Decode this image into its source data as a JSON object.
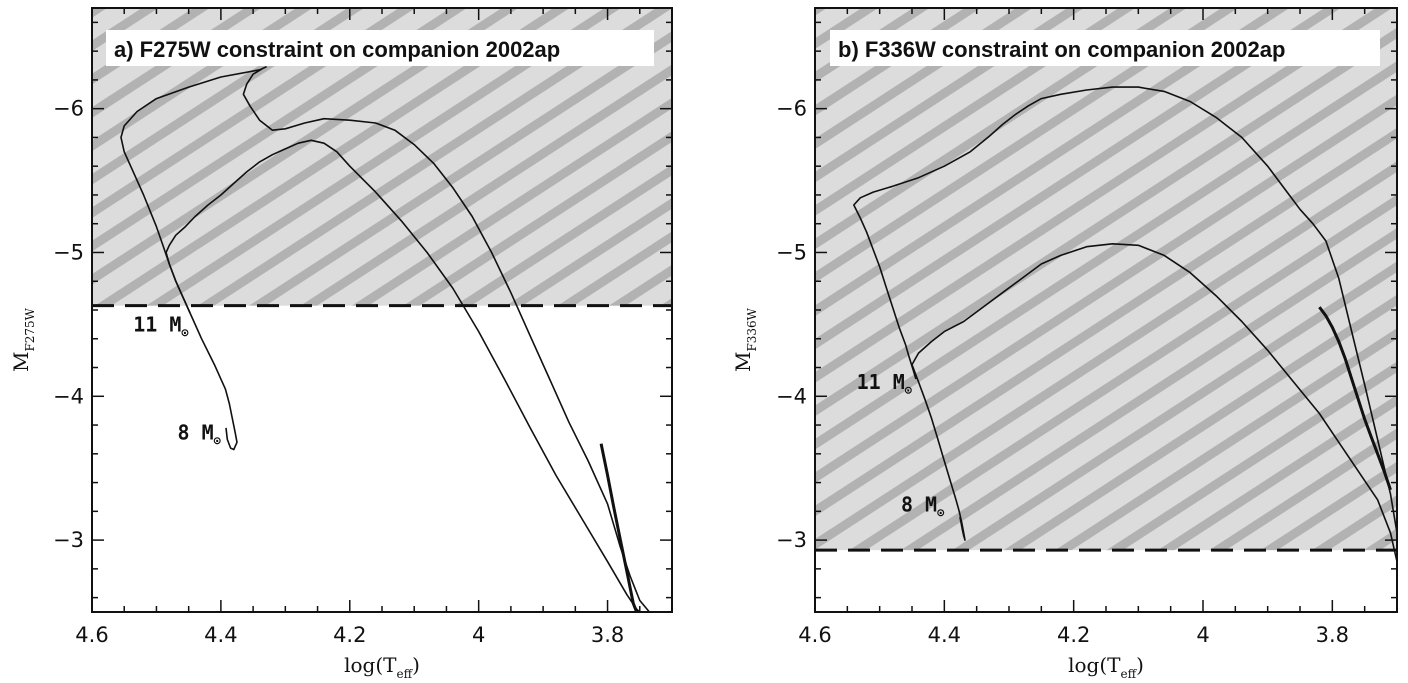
{
  "chart_data": [
    {
      "type": "line",
      "title": "a) F275W constraint on companion 2002ap",
      "xlabel_main": "log(T",
      "xlabel_sub": "eff",
      "xlabel_close": ")",
      "ylabel_main": "M",
      "ylabel_sub": "F275W",
      "xlim": [
        4.6,
        3.7
      ],
      "ylim": [
        -2.5,
        -6.7
      ],
      "xticks": [
        4.6,
        4.4,
        4.2,
        4.0,
        3.8
      ],
      "xtick_labels": [
        "4.6",
        "4.4",
        "4.2",
        "4",
        "3.8"
      ],
      "yticks": [
        -3,
        -4,
        -5,
        -6
      ],
      "ytick_labels": [
        "−3",
        "−4",
        "−5",
        "−6"
      ],
      "limit": -4.63,
      "shading": "hatched region brighter than limit",
      "track_labels": [
        {
          "text": "11 M",
          "sub": "⊙",
          "x": 4.45,
          "y": -4.45
        },
        {
          "text": "8 M",
          "sub": "⊙",
          "x": 4.4,
          "y": -3.7
        }
      ],
      "series": [
        {
          "name": "11 M⊙",
          "x": [
            4.448,
            4.452,
            4.46,
            4.47,
            4.48,
            4.49,
            4.5,
            4.52,
            4.54,
            4.55,
            4.555,
            4.55,
            4.53,
            4.5,
            4.45,
            4.4,
            4.34,
            4.33,
            4.335,
            4.35,
            4.36,
            4.365,
            4.355,
            4.34,
            4.32,
            4.3,
            4.27,
            4.24,
            4.2,
            4.16,
            4.13,
            4.1,
            4.07,
            4.04,
            4.01,
            3.98,
            3.95,
            3.92,
            3.89,
            3.86,
            3.83,
            3.8,
            3.78,
            3.765,
            3.75,
            3.735
          ],
          "y": [
            -4.58,
            -4.62,
            -4.7,
            -4.8,
            -4.92,
            -5.05,
            -5.18,
            -5.4,
            -5.6,
            -5.7,
            -5.8,
            -5.88,
            -5.98,
            -6.07,
            -6.15,
            -6.22,
            -6.27,
            -6.29,
            -6.28,
            -6.24,
            -6.17,
            -6.1,
            -6.02,
            -5.92,
            -5.85,
            -5.86,
            -5.9,
            -5.93,
            -5.92,
            -5.9,
            -5.85,
            -5.75,
            -5.62,
            -5.45,
            -5.25,
            -5.0,
            -4.72,
            -4.42,
            -4.12,
            -3.82,
            -3.55,
            -3.25,
            -2.95,
            -2.75,
            -2.58,
            -2.5
          ]
        },
        {
          "name": "8 M⊙",
          "x": [
            4.392,
            4.39,
            4.385,
            4.38,
            4.375,
            4.378,
            4.382,
            4.387,
            4.393,
            4.41,
            4.43,
            4.45,
            4.47,
            4.48,
            4.485,
            4.48,
            4.47,
            4.455,
            4.44,
            4.42,
            4.4,
            4.38,
            4.36,
            4.34,
            4.32,
            4.3,
            4.28,
            4.26,
            4.24,
            4.22,
            4.2,
            4.16,
            4.12,
            4.08,
            4.04,
            4.0,
            3.96,
            3.92,
            3.88,
            3.84,
            3.8,
            3.77,
            3.755,
            3.745
          ],
          "y": [
            -3.78,
            -3.7,
            -3.64,
            -3.63,
            -3.68,
            -3.75,
            -3.84,
            -3.95,
            -4.05,
            -4.22,
            -4.4,
            -4.6,
            -4.8,
            -4.92,
            -5.0,
            -5.05,
            -5.12,
            -5.18,
            -5.25,
            -5.33,
            -5.4,
            -5.48,
            -5.56,
            -5.63,
            -5.68,
            -5.72,
            -5.76,
            -5.78,
            -5.76,
            -5.7,
            -5.6,
            -5.42,
            -5.22,
            -5.0,
            -4.75,
            -4.45,
            -4.12,
            -3.78,
            -3.45,
            -3.15,
            -2.85,
            -2.62,
            -2.52,
            -2.48
          ]
        }
      ],
      "rgb_x": [
        3.81,
        3.8,
        3.79,
        3.78,
        3.77,
        3.76,
        3.755
      ],
      "rgb_y": [
        -3.67,
        -3.45,
        -3.22,
        -3.0,
        -2.78,
        -2.56,
        -2.5
      ]
    },
    {
      "type": "line",
      "title": "b) F336W constraint on companion 2002ap",
      "xlabel_main": "log(T",
      "xlabel_sub": "eff",
      "xlabel_close": ")",
      "ylabel_main": "M",
      "ylabel_sub": "F336W",
      "xlim": [
        4.6,
        3.7
      ],
      "ylim": [
        -2.5,
        -6.7
      ],
      "xticks": [
        4.6,
        4.4,
        4.2,
        4.0,
        3.8
      ],
      "xtick_labels": [
        "4.6",
        "4.4",
        "4.2",
        "4",
        "3.8"
      ],
      "yticks": [
        -3,
        -4,
        -5,
        -6
      ],
      "ytick_labels": [
        "−3",
        "−4",
        "−5",
        "−6"
      ],
      "limit": -2.93,
      "shading": "hatched region brighter than limit",
      "track_labels": [
        {
          "text": "11 M",
          "sub": "⊙",
          "x": 4.45,
          "y": -4.05
        },
        {
          "text": "8 M",
          "sub": "⊙",
          "x": 4.4,
          "y": -3.2
        }
      ],
      "series": [
        {
          "name": "11 M⊙",
          "x": [
            4.444,
            4.448,
            4.455,
            4.46,
            4.47,
            4.48,
            4.49,
            4.5,
            4.51,
            4.52,
            4.53,
            4.54,
            4.53,
            4.51,
            4.48,
            4.44,
            4.4,
            4.36,
            4.33,
            4.31,
            4.29,
            4.27,
            4.25,
            4.22,
            4.18,
            4.14,
            4.1,
            4.06,
            4.02,
            3.98,
            3.94,
            3.9,
            3.87,
            3.85,
            3.83,
            3.81,
            3.79,
            3.77,
            3.75,
            3.73,
            3.71,
            3.7
          ],
          "y": [
            -4.12,
            -4.18,
            -4.28,
            -4.36,
            -4.48,
            -4.62,
            -4.76,
            -4.9,
            -5.02,
            -5.14,
            -5.24,
            -5.33,
            -5.38,
            -5.42,
            -5.46,
            -5.52,
            -5.6,
            -5.7,
            -5.81,
            -5.89,
            -5.96,
            -6.02,
            -6.07,
            -6.1,
            -6.13,
            -6.15,
            -6.15,
            -6.12,
            -6.05,
            -5.94,
            -5.8,
            -5.6,
            -5.42,
            -5.3,
            -5.2,
            -5.08,
            -4.82,
            -4.45,
            -4.08,
            -3.7,
            -3.32,
            -3.05
          ]
        },
        {
          "name": "8 M⊙",
          "x": [
            4.376,
            4.374,
            4.372,
            4.37,
            4.368,
            4.37,
            4.373,
            4.377,
            4.382,
            4.39,
            4.4,
            4.41,
            4.42,
            4.43,
            4.44,
            4.45,
            4.44,
            4.42,
            4.4,
            4.37,
            4.34,
            4.31,
            4.28,
            4.25,
            4.22,
            4.18,
            4.14,
            4.1,
            4.06,
            4.02,
            3.98,
            3.94,
            3.9,
            3.86,
            3.82,
            3.79,
            3.76,
            3.73,
            3.71,
            3.7
          ],
          "y": [
            -3.16,
            -3.12,
            -3.07,
            -3.03,
            -3.0,
            -3.05,
            -3.12,
            -3.2,
            -3.28,
            -3.4,
            -3.55,
            -3.7,
            -3.85,
            -3.98,
            -4.1,
            -4.22,
            -4.3,
            -4.38,
            -4.45,
            -4.52,
            -4.62,
            -4.72,
            -4.82,
            -4.92,
            -4.98,
            -5.04,
            -5.06,
            -5.05,
            -4.98,
            -4.86,
            -4.7,
            -4.52,
            -4.32,
            -4.1,
            -3.88,
            -3.68,
            -3.48,
            -3.28,
            -3.05,
            -2.85
          ]
        }
      ],
      "rgb_x": [
        3.82,
        3.81,
        3.8,
        3.79,
        3.78,
        3.77,
        3.76,
        3.75,
        3.74,
        3.73,
        3.72,
        3.71
      ],
      "rgb_y": [
        -4.62,
        -4.56,
        -4.48,
        -4.38,
        -4.26,
        -4.12,
        -3.98,
        -3.84,
        -3.72,
        -3.6,
        -3.48,
        -3.35
      ]
    }
  ]
}
